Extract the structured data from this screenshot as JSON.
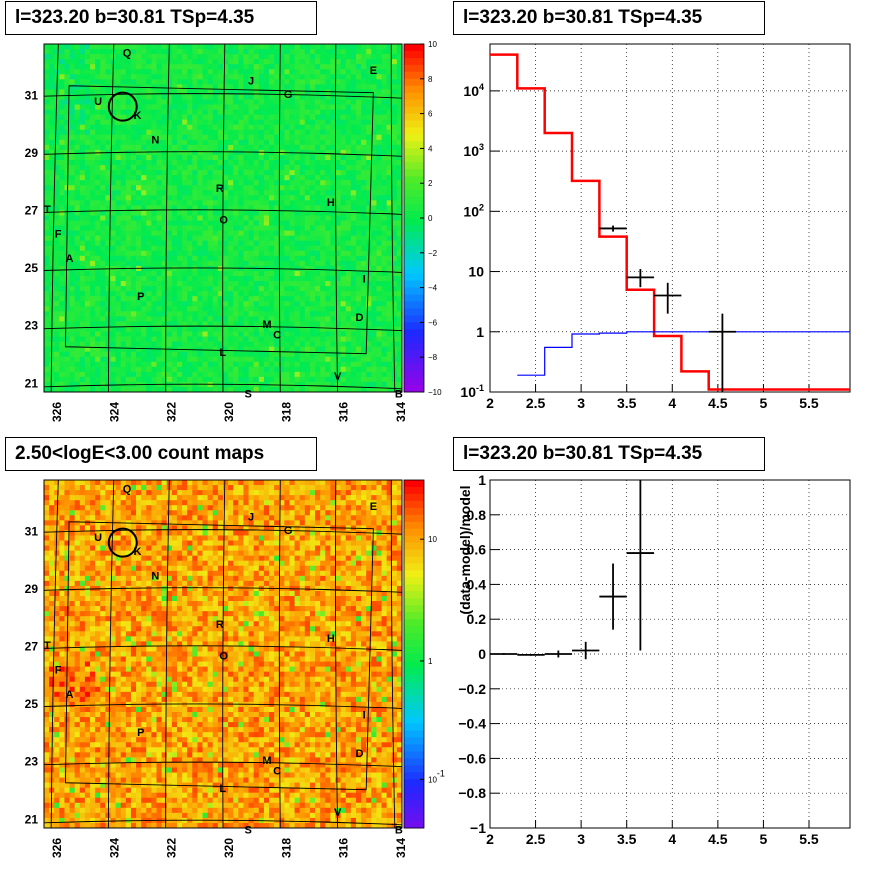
{
  "panels": {
    "top_left_title": "l=323.20 b=30.81 TSp=4.35",
    "top_right_title": "l=323.20 b=30.81 TSp=4.35",
    "bottom_left_title": "2.50<logE<3.00 count maps",
    "bottom_right_title": "l=323.20 b=30.81 TSp=4.35"
  },
  "chart_data": [
    {
      "id": "significance-map",
      "type": "heatmap",
      "title": "l=323.20 b=30.81 TSp=4.35",
      "x_ticks": [
        "326",
        "324",
        "322",
        "320",
        "318",
        "316",
        "314"
      ],
      "y_ticks": [
        "21",
        "23",
        "25",
        "27",
        "29",
        "31"
      ],
      "colorbar_ticks": [
        "10",
        "8",
        "6",
        "4",
        "2",
        "0",
        "−2",
        "−4",
        "−6",
        "−8",
        "−10"
      ],
      "colorbar_range": [
        -10,
        10
      ],
      "dominant_value": 0.5,
      "source_labels": [
        "Q",
        "J",
        "E",
        "G",
        "U",
        "K",
        "N",
        "R",
        "H",
        "O",
        "T",
        "F",
        "A",
        "I",
        "P",
        "D",
        "M",
        "C",
        "L",
        "V",
        "S",
        "B"
      ]
    },
    {
      "id": "spectrum",
      "type": "line",
      "title": "l=323.20 b=30.81 TSp=4.35",
      "x_ticks": [
        "2",
        "2.5",
        "3",
        "3.5",
        "4",
        "4.5",
        "5",
        "5.5"
      ],
      "xlim": [
        2,
        5.95
      ],
      "y_scale": "log",
      "y_ticks": [
        "10^-1",
        "1",
        "10",
        "10^2",
        "10^3",
        "10^4"
      ],
      "ylim": [
        0.1,
        60000
      ],
      "grid": true,
      "series": [
        {
          "color": "#ff0000",
          "kind": "step",
          "bins": [
            [
              2.0,
              2.3,
              40000
            ],
            [
              2.3,
              2.6,
              11000
            ],
            [
              2.6,
              2.9,
              2000
            ],
            [
              2.9,
              3.2,
              320
            ],
            [
              3.2,
              3.5,
              38
            ],
            [
              3.5,
              3.8,
              5
            ],
            [
              3.8,
              4.1,
              0.85
            ],
            [
              4.1,
              4.4,
              0.22
            ],
            [
              4.4,
              5.95,
              0.11
            ]
          ]
        },
        {
          "color": "#0000ff",
          "kind": "step",
          "bins": [
            [
              2.3,
              2.6,
              0.19
            ],
            [
              2.6,
              2.9,
              0.55
            ],
            [
              2.9,
              3.2,
              0.92
            ],
            [
              3.2,
              3.5,
              0.95
            ],
            [
              3.5,
              3.8,
              1.0
            ],
            [
              3.8,
              5.95,
              1.0
            ]
          ]
        },
        {
          "color": "#000000",
          "kind": "errorbars",
          "points": [
            {
              "x": 3.35,
              "xerr": 0.15,
              "y": 52,
              "ylo": 46,
              "yhi": 58
            },
            {
              "x": 3.65,
              "xerr": 0.15,
              "y": 8,
              "ylo": 5.5,
              "yhi": 11
            },
            {
              "x": 3.95,
              "xerr": 0.15,
              "y": 4,
              "ylo": 2,
              "yhi": 6.5
            },
            {
              "x": 4.55,
              "xerr": 0.15,
              "y": 1.0,
              "ylo": 0.1,
              "yhi": 2.0
            }
          ]
        }
      ]
    },
    {
      "id": "count-map",
      "type": "heatmap",
      "title": "2.50<logE<3.00 count maps",
      "x_ticks": [
        "326",
        "324",
        "322",
        "320",
        "318",
        "316",
        "314"
      ],
      "y_ticks": [
        "21",
        "23",
        "25",
        "27",
        "29",
        "31"
      ],
      "colorbar_ticks": [
        "10",
        "1",
        "10^-1"
      ],
      "colorbar_scale": "log",
      "source_labels": [
        "Q",
        "J",
        "E",
        "G",
        "U",
        "K",
        "N",
        "R",
        "H",
        "O",
        "T",
        "F",
        "A",
        "I",
        "P",
        "D",
        "M",
        "C",
        "L",
        "V",
        "S",
        "B"
      ]
    },
    {
      "id": "residuals",
      "type": "scatter",
      "title": "l=323.20 b=30.81 TSp=4.35",
      "ylabel": "(data-model)/model",
      "x_ticks": [
        "2",
        "2.5",
        "3",
        "3.5",
        "4",
        "4.5",
        "5",
        "5.5"
      ],
      "xlim": [
        2,
        5.95
      ],
      "y_ticks": [
        "1",
        "0.8",
        "0.6",
        "0.4",
        "0.2",
        "0",
        "−0.2",
        "−0.4",
        "−0.6",
        "−0.8",
        "−1"
      ],
      "ylim": [
        -1,
        1
      ],
      "grid": true,
      "points": [
        {
          "x": 2.15,
          "xerr": 0.15,
          "y": 0.0,
          "ylo": -0.005,
          "yhi": 0.005
        },
        {
          "x": 2.45,
          "xerr": 0.15,
          "y": -0.005,
          "ylo": -0.01,
          "yhi": 0.0
        },
        {
          "x": 2.75,
          "xerr": 0.15,
          "y": 0.0,
          "ylo": -0.02,
          "yhi": 0.02
        },
        {
          "x": 3.05,
          "xerr": 0.15,
          "y": 0.02,
          "ylo": -0.03,
          "yhi": 0.07
        },
        {
          "x": 3.35,
          "xerr": 0.15,
          "y": 0.33,
          "ylo": 0.14,
          "yhi": 0.52
        },
        {
          "x": 3.65,
          "xerr": 0.15,
          "y": 0.58,
          "ylo": 0.02,
          "yhi": 1.0
        }
      ]
    }
  ]
}
